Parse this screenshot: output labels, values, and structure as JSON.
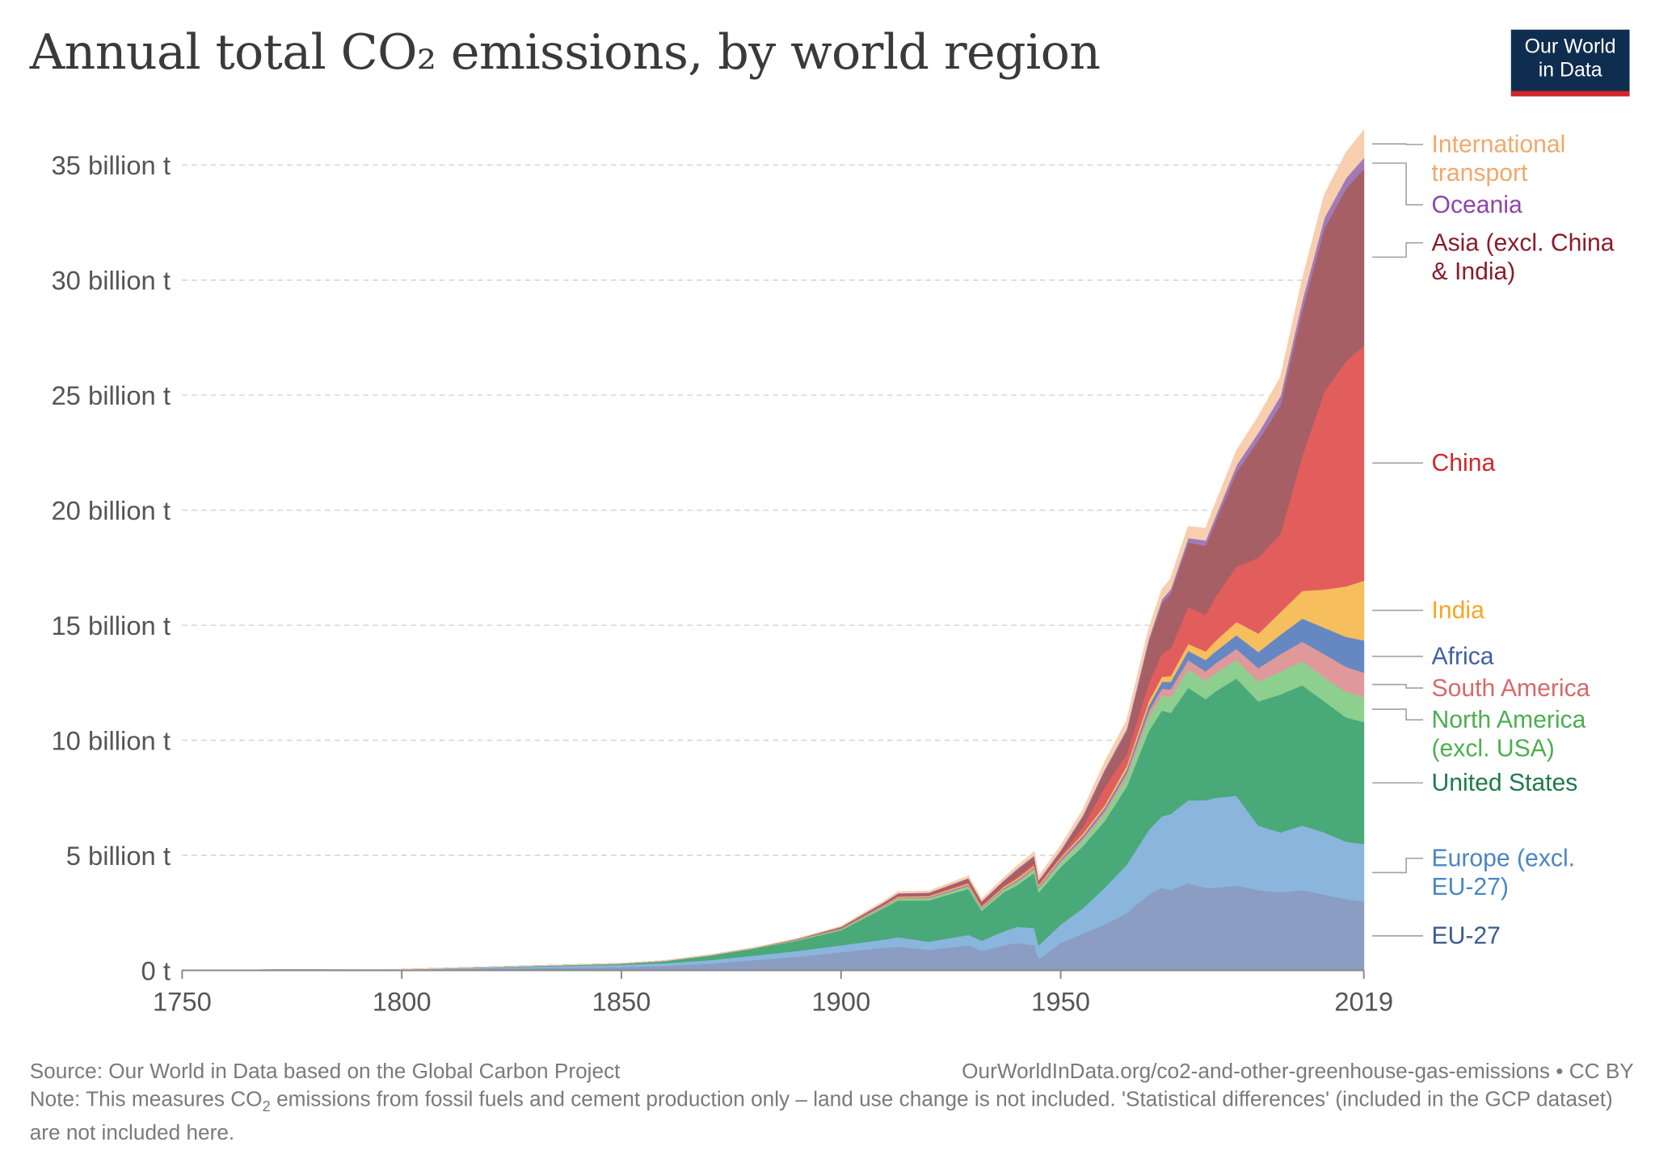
{
  "header": {
    "title": "Annual total CO₂ emissions, by world region",
    "logo_line1": "Our World",
    "logo_line2": "in Data"
  },
  "footer": {
    "source": "Source: Our World in Data based on the Global Carbon Project",
    "url": "OurWorldInData.org/co2-and-other-greenhouse-gas-emissions • CC BY",
    "note_a": "Note: This measures CO",
    "note_sub": "2",
    "note_b": " emissions from fossil fuels and cement production only – land use change is not included. 'Statistical differences' (included in the GCP dataset) are not included here."
  },
  "colors": {
    "grid": "#d9d9d9",
    "axis": "#888888",
    "leader": "#a0a0a0",
    "brand_navy": "#0f2d4f",
    "brand_red": "#d3242a"
  },
  "chart_data": {
    "type": "area",
    "stacked": true,
    "title": "Annual total CO₂ emissions, by world region",
    "xlabel": "",
    "ylabel": "",
    "x_ticks": [
      1750,
      1800,
      1850,
      1900,
      1950,
      2019
    ],
    "x_tick_labels": [
      "1750",
      "1800",
      "1850",
      "1900",
      "1950",
      "2019"
    ],
    "xlim": [
      1750,
      2019
    ],
    "y_ticks": [
      0,
      5,
      10,
      15,
      20,
      25,
      30,
      35
    ],
    "y_tick_labels": [
      "0 t",
      "5 billion t",
      "10 billion t",
      "15 billion t",
      "20 billion t",
      "25 billion t",
      "30 billion t",
      "35 billion t"
    ],
    "ylim": [
      0,
      35
    ],
    "y_unit": "billion t",
    "grid": true,
    "legend_position": "right",
    "x": [
      1750,
      1800,
      1850,
      1860,
      1870,
      1880,
      1890,
      1900,
      1910,
      1913,
      1920,
      1929,
      1932,
      1937,
      1940,
      1944,
      1945,
      1950,
      1955,
      1960,
      1965,
      1970,
      1973,
      1975,
      1979,
      1983,
      1985,
      1990,
      1995,
      2000,
      2005,
      2010,
      2015,
      2019
    ],
    "series": [
      {
        "name": "EU-27",
        "color": "#8b9dc3",
        "label_color": "#3b5b8e",
        "values": [
          0.005,
          0.03,
          0.15,
          0.2,
          0.3,
          0.45,
          0.6,
          0.8,
          1.0,
          1.05,
          0.9,
          1.1,
          0.85,
          1.1,
          1.2,
          1.1,
          0.5,
          1.2,
          1.6,
          2.0,
          2.5,
          3.3,
          3.6,
          3.5,
          3.8,
          3.6,
          3.6,
          3.7,
          3.5,
          3.4,
          3.5,
          3.3,
          3.1,
          3.0
        ]
      },
      {
        "name": "Europe (excl. EU-27)",
        "color": "#8ab6de",
        "label_color": "#4a86c5",
        "values": [
          0.0,
          0.01,
          0.1,
          0.12,
          0.15,
          0.2,
          0.25,
          0.3,
          0.35,
          0.4,
          0.35,
          0.45,
          0.45,
          0.6,
          0.7,
          0.75,
          0.6,
          0.8,
          1.1,
          1.6,
          2.1,
          2.8,
          3.1,
          3.3,
          3.6,
          3.8,
          3.9,
          3.9,
          2.8,
          2.6,
          2.8,
          2.7,
          2.5,
          2.5
        ]
      },
      {
        "name": "United States",
        "color": "#4aa979",
        "label_color": "#1f7a4c",
        "values": [
          0.0,
          0.0,
          0.05,
          0.1,
          0.2,
          0.3,
          0.45,
          0.65,
          1.4,
          1.6,
          1.8,
          2.0,
          1.3,
          1.7,
          1.8,
          2.4,
          2.3,
          2.5,
          2.7,
          2.9,
          3.4,
          4.3,
          4.6,
          4.4,
          4.9,
          4.4,
          4.6,
          5.1,
          5.4,
          6.0,
          6.1,
          5.7,
          5.4,
          5.3
        ]
      },
      {
        "name": "North America (excl. USA)",
        "color": "#8dcf8f",
        "label_color": "#4caf50",
        "values": [
          0.0,
          0.0,
          0.0,
          0.0,
          0.01,
          0.02,
          0.03,
          0.04,
          0.06,
          0.07,
          0.08,
          0.1,
          0.08,
          0.1,
          0.12,
          0.15,
          0.15,
          0.2,
          0.25,
          0.3,
          0.4,
          0.6,
          0.65,
          0.7,
          0.8,
          0.8,
          0.8,
          0.8,
          0.85,
          1.0,
          1.05,
          1.05,
          1.1,
          1.1
        ]
      },
      {
        "name": "South America",
        "color": "#e0999b",
        "label_color": "#d66a6a",
        "values": [
          0.0,
          0.0,
          0.0,
          0.0,
          0.0,
          0.0,
          0.01,
          0.01,
          0.02,
          0.03,
          0.03,
          0.04,
          0.03,
          0.04,
          0.05,
          0.05,
          0.05,
          0.07,
          0.1,
          0.15,
          0.18,
          0.25,
          0.3,
          0.32,
          0.4,
          0.4,
          0.42,
          0.48,
          0.6,
          0.75,
          0.85,
          1.0,
          1.1,
          1.05
        ]
      },
      {
        "name": "Africa",
        "color": "#6688c2",
        "label_color": "#3f61a8",
        "values": [
          0.0,
          0.0,
          0.0,
          0.0,
          0.0,
          0.0,
          0.0,
          0.01,
          0.02,
          0.02,
          0.03,
          0.04,
          0.03,
          0.04,
          0.05,
          0.05,
          0.05,
          0.07,
          0.1,
          0.12,
          0.15,
          0.25,
          0.3,
          0.33,
          0.4,
          0.5,
          0.52,
          0.6,
          0.7,
          0.85,
          1.0,
          1.15,
          1.3,
          1.4
        ]
      },
      {
        "name": "India",
        "color": "#f6be5d",
        "label_color": "#f5a623",
        "values": [
          0.0,
          0.0,
          0.0,
          0.0,
          0.0,
          0.0,
          0.01,
          0.02,
          0.03,
          0.04,
          0.05,
          0.06,
          0.05,
          0.06,
          0.07,
          0.07,
          0.07,
          0.07,
          0.1,
          0.12,
          0.17,
          0.2,
          0.22,
          0.25,
          0.3,
          0.37,
          0.45,
          0.58,
          0.8,
          0.98,
          1.2,
          1.66,
          2.2,
          2.6
        ]
      },
      {
        "name": "China",
        "color": "#e15e5c",
        "label_color": "#cc2a2a",
        "values": [
          0.0,
          0.0,
          0.0,
          0.0,
          0.0,
          0.0,
          0.0,
          0.01,
          0.02,
          0.03,
          0.03,
          0.05,
          0.05,
          0.05,
          0.08,
          0.1,
          0.08,
          0.08,
          0.28,
          0.78,
          0.5,
          0.77,
          1.0,
          1.2,
          1.6,
          1.6,
          1.9,
          2.4,
          3.3,
          3.4,
          5.9,
          8.6,
          9.8,
          10.2
        ]
      },
      {
        "name": "Asia (excl. China & India)",
        "color": "#a75f66",
        "label_color": "#8a1c2a",
        "values": [
          0.0,
          0.0,
          0.0,
          0.0,
          0.0,
          0.0,
          0.02,
          0.05,
          0.08,
          0.1,
          0.1,
          0.15,
          0.15,
          0.2,
          0.3,
          0.3,
          0.1,
          0.2,
          0.45,
          0.7,
          1.0,
          1.8,
          2.2,
          2.4,
          2.8,
          3.0,
          3.2,
          4.1,
          5.1,
          5.6,
          6.3,
          7.1,
          7.5,
          7.7
        ]
      },
      {
        "name": "Oceania",
        "color": "#a07bb8",
        "label_color": "#8e44ad",
        "values": [
          0.0,
          0.0,
          0.0,
          0.0,
          0.0,
          0.0,
          0.01,
          0.01,
          0.02,
          0.02,
          0.02,
          0.03,
          0.03,
          0.03,
          0.04,
          0.04,
          0.04,
          0.05,
          0.06,
          0.08,
          0.1,
          0.14,
          0.16,
          0.17,
          0.2,
          0.22,
          0.24,
          0.3,
          0.33,
          0.39,
          0.43,
          0.45,
          0.46,
          0.47
        ]
      },
      {
        "name": "International transport",
        "color": "#f8cfae",
        "label_color": "#f0a96a",
        "values": [
          0.0,
          0.0,
          0.0,
          0.0,
          0.0,
          0.0,
          0.0,
          0.02,
          0.05,
          0.06,
          0.06,
          0.08,
          0.08,
          0.1,
          0.12,
          0.15,
          0.15,
          0.18,
          0.22,
          0.3,
          0.35,
          0.4,
          0.42,
          0.45,
          0.5,
          0.52,
          0.55,
          0.62,
          0.7,
          0.8,
          0.9,
          1.0,
          1.1,
          1.2
        ]
      }
    ],
    "legend": [
      {
        "lines": [
          "International",
          "transport"
        ],
        "series": 10
      },
      {
        "lines": [
          "Oceania"
        ],
        "series": 9
      },
      {
        "lines": [
          "Asia (excl. China",
          "& India)"
        ],
        "series": 8
      },
      {
        "lines": [
          "China"
        ],
        "series": 7
      },
      {
        "lines": [
          "India"
        ],
        "series": 6
      },
      {
        "lines": [
          "Africa"
        ],
        "series": 5
      },
      {
        "lines": [
          "South America"
        ],
        "series": 4
      },
      {
        "lines": [
          "North America",
          "(excl. USA)"
        ],
        "series": 3
      },
      {
        "lines": [
          "United States"
        ],
        "series": 2
      },
      {
        "lines": [
          "Europe (excl.",
          "EU-27)"
        ],
        "series": 1
      },
      {
        "lines": [
          "EU-27"
        ],
        "series": 0
      }
    ]
  }
}
